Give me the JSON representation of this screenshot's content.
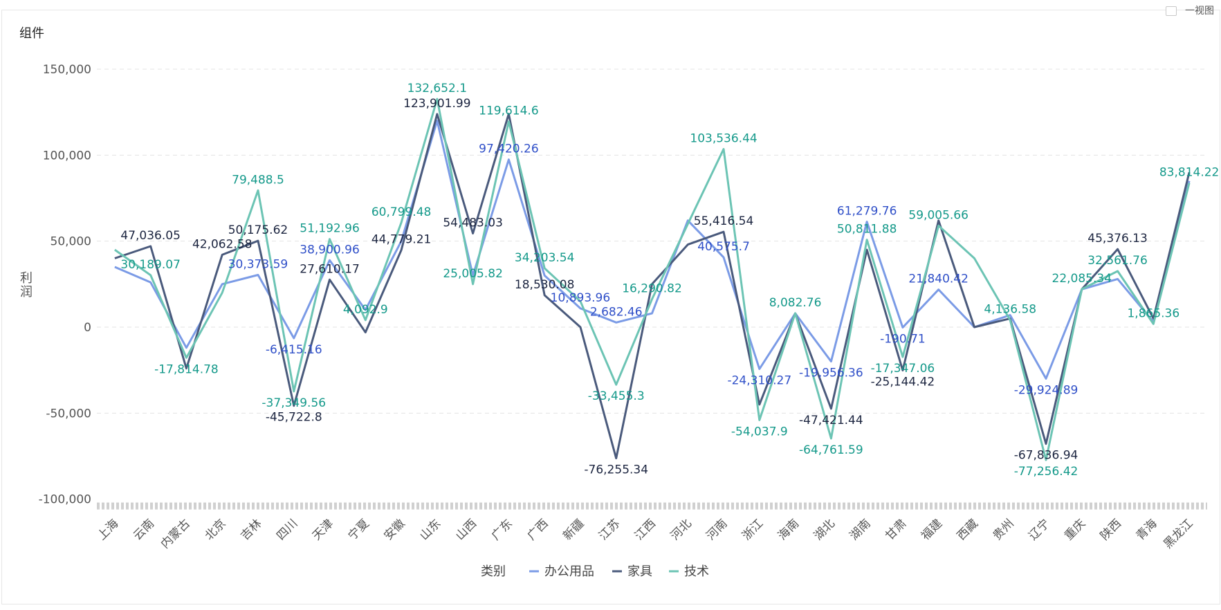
{
  "widget": {
    "title": "组件"
  },
  "chart_data": {
    "type": "line",
    "ylabel": "利润",
    "ylim": [
      -100000,
      150000
    ],
    "yticks": [
      150000,
      100000,
      50000,
      0,
      -50000,
      -100000
    ],
    "ytick_labels": [
      "150,000",
      "100,000",
      "50,000",
      "0",
      "-50,000",
      "-100,000"
    ],
    "grid": true,
    "legend_title": "类别",
    "legend_position": "bottom",
    "categories": [
      "上海",
      "云南",
      "内蒙古",
      "北京",
      "吉林",
      "四川",
      "天津",
      "宁夏",
      "安徽",
      "山东",
      "山西",
      "广东",
      "广西",
      "新疆",
      "江苏",
      "江西",
      "河北",
      "河南",
      "浙江",
      "海南",
      "湖北",
      "湖南",
      "甘肃",
      "福建",
      "西藏",
      "贵州",
      "辽宁",
      "重庆",
      "陕西",
      "青海",
      "黑龙江"
    ],
    "series": [
      {
        "name": "办公用品",
        "color": "#7b9be6",
        "label_color": "#2f4fc8",
        "values": [
          35000,
          26000,
          -12000,
          25000,
          30373.59,
          -6415.16,
          38900.96,
          10000,
          50000,
          120000,
          30000,
          97420.26,
          30000,
          10893.96,
          2682.46,
          8000,
          62000,
          40575.7,
          -24310.27,
          8000,
          -19956.36,
          61279.76,
          -190.71,
          21840.42,
          0,
          7000,
          -29924.89,
          22000,
          28000,
          3000,
          85000
        ],
        "labels": [
          "",
          "",
          "",
          "",
          "30,373.59",
          "-6,415.16",
          "38,900.96",
          "",
          "",
          "",
          "",
          "97,420.26",
          "",
          "10,893.96",
          "2,682.46",
          "",
          "",
          "40,575.7",
          "-24,310.27",
          "",
          "-19,956.36",
          "61,279.76",
          "-190.71",
          "21,840.42",
          "",
          "",
          "-29,924.89",
          "",
          "",
          "",
          ""
        ]
      },
      {
        "name": "家具",
        "color": "#4a5a7c",
        "label_color": "#1c2540",
        "values": [
          40000,
          47036.05,
          -24000,
          42062.58,
          50175.62,
          -45722.8,
          27610.17,
          -3000,
          44779.21,
          123901.99,
          54483.03,
          124000,
          18530.08,
          0,
          -76255.34,
          25000,
          48000,
          55416.54,
          -45000,
          8000,
          -47421.44,
          45000,
          -25144.42,
          62000,
          0,
          5000,
          -67836.94,
          22000,
          45376.13,
          5000,
          90000
        ],
        "labels": [
          "",
          "47,036.05",
          "",
          "42,062.58",
          "50,175.62",
          "-45,722.8",
          "27,610.17",
          "",
          "44,779.21",
          "123,901.99",
          "54,483.03",
          "",
          "18,530.08",
          "",
          "-76,255.34",
          "",
          "",
          "55,416.54",
          "",
          "",
          "-47,421.44",
          "",
          "-25,144.42",
          "",
          "",
          "",
          "-67,836.94",
          "",
          "45,376.13",
          "",
          ""
        ]
      },
      {
        "name": "技术",
        "color": "#6cc4b4",
        "label_color": "#14998a",
        "values": [
          45000,
          30189.07,
          -17814.78,
          20000,
          79488.5,
          -37349.56,
          51192.96,
          4092.9,
          60799.48,
          132652.1,
          25005.82,
          119614.6,
          34203.54,
          15000,
          -33455.3,
          16290.82,
          60000,
          103536.44,
          -54037.9,
          8082.76,
          -64761.59,
          50811.88,
          -17347.06,
          59005.66,
          40000,
          4136.58,
          -77256.42,
          22085.34,
          32561.76,
          1865.36,
          83814.22
        ],
        "labels": [
          "",
          "30,189.07",
          "-17,814.78",
          "",
          "79,488.5",
          "-37,349.56",
          "51,192.96",
          "4,092.9",
          "60,799.48",
          "132,652.1",
          "25,005.82",
          "119,614.6",
          "34,203.54",
          "",
          "-33,455.3",
          "16,290.82",
          "",
          "103,536.44",
          "-54,037.9",
          "8,082.76",
          "-64,761.59",
          "50,811.88",
          "-17,347.06",
          "59,005.66",
          "",
          "4,136.58",
          "-77,256.42",
          "22,085.34",
          "32,561.76",
          "1,865.36",
          "83,814.22"
        ]
      }
    ]
  },
  "corner": {
    "text": "一视图"
  }
}
